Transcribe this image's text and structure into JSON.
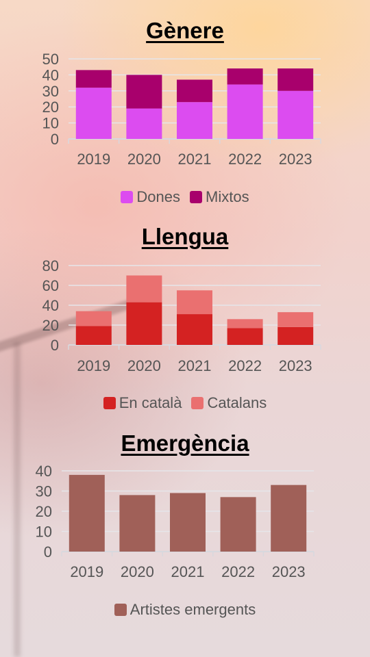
{
  "colors": {
    "dones": "#dc4cf0",
    "mixtos": "#a8006c",
    "en_catala": "#d42222",
    "catalans": "#ea7070",
    "emergents": "#a06058"
  },
  "chart_data": [
    {
      "type": "bar",
      "stacked": true,
      "title": "Gènere",
      "categories": [
        "2019",
        "2020",
        "2021",
        "2022",
        "2023"
      ],
      "series": [
        {
          "name": "Dones",
          "values": [
            32,
            19,
            23,
            34,
            30
          ]
        },
        {
          "name": "Mixtos",
          "values": [
            11,
            21,
            14,
            10,
            14
          ]
        }
      ],
      "ylim": [
        0,
        50
      ],
      "yticks": [
        "0",
        "10",
        "20",
        "30",
        "40",
        "50"
      ],
      "grid": true,
      "legend": "bottom"
    },
    {
      "type": "bar",
      "stacked": true,
      "title": "Llengua",
      "categories": [
        "2019",
        "2020",
        "2021",
        "2022",
        "2023"
      ],
      "series": [
        {
          "name": "En català",
          "values": [
            19,
            43,
            31,
            17,
            18
          ]
        },
        {
          "name": "Catalans",
          "values": [
            15,
            27,
            24,
            9,
            15
          ]
        }
      ],
      "ylim": [
        0,
        80
      ],
      "yticks": [
        "0",
        "20",
        "40",
        "60",
        "80"
      ],
      "grid": true,
      "legend": "bottom"
    },
    {
      "type": "bar",
      "title": "Emergència",
      "categories": [
        "2019",
        "2020",
        "2021",
        "2022",
        "2023"
      ],
      "series": [
        {
          "name": "Artistes emergents",
          "values": [
            38,
            28,
            29,
            27,
            33
          ]
        }
      ],
      "ylim": [
        0,
        40
      ],
      "yticks": [
        "0",
        "10",
        "20",
        "30",
        "40"
      ],
      "grid": true,
      "legend": "bottom"
    }
  ]
}
